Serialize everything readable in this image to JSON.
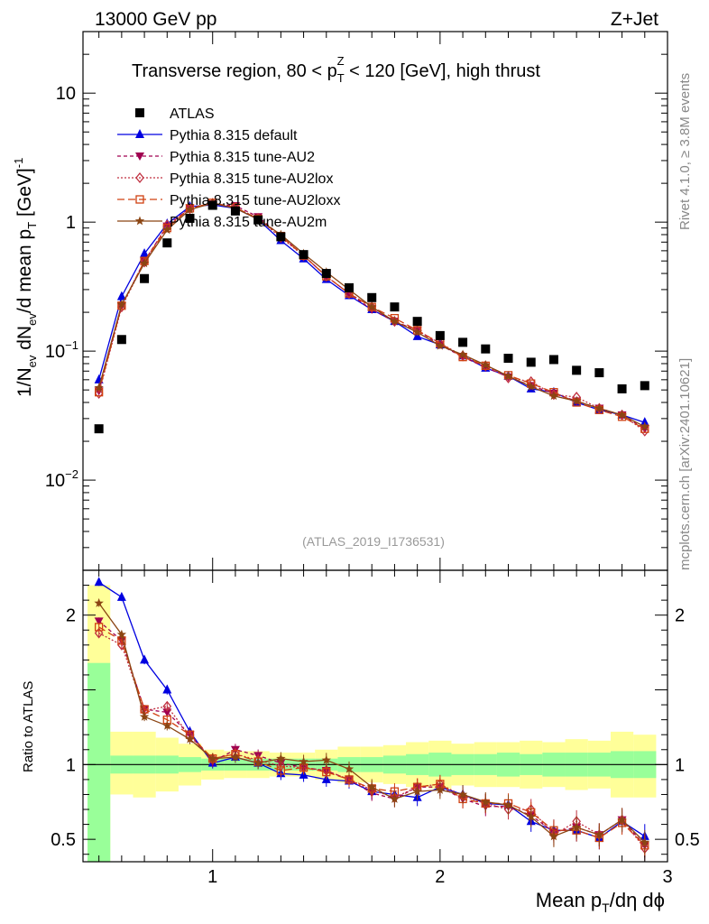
{
  "header": {
    "left": "13000 GeV pp",
    "right": "Z+Jet"
  },
  "side": {
    "rivet": "Rivet 4.1.0, ≥ 3.8M events",
    "mcplots": "mcplots.cern.ch [arXiv:2401.10621]"
  },
  "chart_data": {
    "type": "line",
    "title": "Transverse region, 80 < p_T^Z < 120 [GeV], high thrust",
    "title_main": "Transverse region, 80 < p",
    "title_sup": "Z",
    "title_sub": "T",
    "title_rest": " < 120 [GeV], high thrust",
    "analysis_tag": "(ATLAS_2019_I1736531)",
    "ylabel_main": "1/N",
    "ylabel_sub1": "ev",
    "ylabel_mid": " dN",
    "ylabel_sub2": "ev",
    "ylabel_end": "/d mean p",
    "ylabel_sub3": "T",
    "ylabel_unit": " [GeV]",
    "ylabel_sup": "-1",
    "ratio_ylabel": "Ratio to ATLAS",
    "xlabel_main": "Mean p",
    "xlabel_sub": "T",
    "xlabel_rest": "/dη dϕ",
    "xlim": [
      0.43,
      3.0
    ],
    "ylim": [
      0.002,
      30
    ],
    "ratio_ylim": [
      0.35,
      2.3
    ],
    "yscale": "log",
    "x_ticks": [
      "1",
      "2",
      "3"
    ],
    "y_tick_labels": [
      {
        "mant": "10",
        "exp": "−2"
      },
      {
        "mant": "10",
        "exp": "−1"
      },
      {
        "mant": "1",
        "exp": ""
      },
      {
        "mant": "10",
        "exp": ""
      }
    ],
    "ratio_ticks": [
      "0.5",
      "1",
      "2"
    ],
    "bin_edges": [
      0.45,
      0.55,
      0.65,
      0.75,
      0.85,
      0.95,
      1.05,
      1.15,
      1.25,
      1.35,
      1.45,
      1.55,
      1.65,
      1.75,
      1.85,
      1.95,
      2.05,
      2.15,
      2.25,
      2.35,
      2.45,
      2.55,
      2.65,
      2.75,
      2.85,
      2.95
    ],
    "x": [
      0.5,
      0.6,
      0.7,
      0.8,
      0.9,
      1.0,
      1.1,
      1.2,
      1.3,
      1.4,
      1.5,
      1.6,
      1.7,
      1.8,
      1.9,
      2.0,
      2.1,
      2.2,
      2.3,
      2.4,
      2.5,
      2.6,
      2.7,
      2.8,
      2.9
    ],
    "data": {
      "name": "ATLAS",
      "values": [
        0.025,
        0.123,
        0.365,
        0.69,
        1.07,
        1.35,
        1.22,
        1.04,
        0.77,
        0.56,
        0.4,
        0.31,
        0.26,
        0.22,
        0.17,
        0.132,
        0.117,
        0.104,
        0.088,
        0.082,
        0.086,
        0.071,
        0.068,
        0.051,
        0.054
      ],
      "band_inner": [
        [
          0.35,
          1.68
        ],
        [
          0.94,
          1.06
        ],
        [
          0.94,
          1.06
        ],
        [
          0.94,
          1.06
        ],
        [
          0.95,
          1.05
        ],
        [
          0.96,
          1.04
        ],
        [
          0.96,
          1.04
        ],
        [
          0.96,
          1.04
        ],
        [
          0.96,
          1.04
        ],
        [
          0.96,
          1.04
        ],
        [
          0.96,
          1.04
        ],
        [
          0.95,
          1.05
        ],
        [
          0.95,
          1.05
        ],
        [
          0.94,
          1.06
        ],
        [
          0.93,
          1.07
        ],
        [
          0.92,
          1.08
        ],
        [
          0.93,
          1.07
        ],
        [
          0.93,
          1.07
        ],
        [
          0.92,
          1.08
        ],
        [
          0.93,
          1.07
        ],
        [
          0.92,
          1.08
        ],
        [
          0.92,
          1.08
        ],
        [
          0.92,
          1.08
        ],
        [
          0.91,
          1.09
        ],
        [
          0.91,
          1.09
        ]
      ],
      "band_outer": [
        [
          0.35,
          2.2
        ],
        [
          0.8,
          1.22
        ],
        [
          0.78,
          1.22
        ],
        [
          0.82,
          1.18
        ],
        [
          0.86,
          1.14
        ],
        [
          0.9,
          1.1
        ],
        [
          0.91,
          1.09
        ],
        [
          0.91,
          1.09
        ],
        [
          0.92,
          1.08
        ],
        [
          0.92,
          1.08
        ],
        [
          0.9,
          1.1
        ],
        [
          0.88,
          1.12
        ],
        [
          0.88,
          1.12
        ],
        [
          0.87,
          1.13
        ],
        [
          0.85,
          1.15
        ],
        [
          0.84,
          1.16
        ],
        [
          0.86,
          1.14
        ],
        [
          0.85,
          1.15
        ],
        [
          0.85,
          1.15
        ],
        [
          0.84,
          1.16
        ],
        [
          0.85,
          1.15
        ],
        [
          0.83,
          1.17
        ],
        [
          0.84,
          1.16
        ],
        [
          0.78,
          1.22
        ],
        [
          0.78,
          1.2
        ]
      ]
    },
    "series": [
      {
        "name": "Pythia 8.315 default",
        "color": "#0000e0",
        "dash": "",
        "marker": "triangle-up",
        "values": [
          0.06,
          0.265,
          0.57,
          0.97,
          1.32,
          1.36,
          1.28,
          1.05,
          0.72,
          0.52,
          0.36,
          0.27,
          0.21,
          0.17,
          0.13,
          0.112,
          0.092,
          0.074,
          0.064,
          0.051,
          0.048,
          0.04,
          0.035,
          0.032,
          0.028
        ],
        "ratio": [
          2.22,
          2.12,
          1.7,
          1.5,
          1.22,
          1.01,
          1.05,
          1.01,
          0.94,
          0.93,
          0.9,
          0.89,
          0.82,
          0.8,
          0.78,
          0.85,
          0.8,
          0.74,
          0.73,
          0.62,
          0.56,
          0.56,
          0.51,
          0.62,
          0.52
        ]
      },
      {
        "name": "Pythia 8.315 tune-AU2",
        "color": "#a00050",
        "dash": "4,3",
        "marker": "triangle-down",
        "values": [
          0.049,
          0.225,
          0.5,
          0.93,
          1.29,
          1.38,
          1.34,
          1.1,
          0.78,
          0.55,
          0.38,
          0.28,
          0.21,
          0.17,
          0.145,
          0.112,
          0.09,
          0.075,
          0.063,
          0.054,
          0.047,
          0.041,
          0.036,
          0.032,
          0.025
        ],
        "ratio": [
          1.96,
          1.83,
          1.37,
          1.35,
          1.2,
          1.02,
          1.1,
          1.06,
          1.01,
          0.98,
          0.96,
          0.9,
          0.81,
          0.77,
          0.85,
          0.85,
          0.77,
          0.72,
          0.72,
          0.66,
          0.55,
          0.58,
          0.53,
          0.63,
          0.46
        ]
      },
      {
        "name": "Pythia 8.315 tune-AU2lox",
        "color": "#c03040",
        "dash": "2,2",
        "marker": "diamond-open",
        "values": [
          0.047,
          0.22,
          0.49,
          0.95,
          1.27,
          1.4,
          1.3,
          1.07,
          0.76,
          0.55,
          0.38,
          0.28,
          0.22,
          0.17,
          0.145,
          0.115,
          0.092,
          0.077,
          0.062,
          0.058,
          0.046,
          0.044,
          0.036,
          0.032,
          0.024
        ],
        "ratio": [
          1.88,
          1.8,
          1.36,
          1.39,
          1.19,
          1.04,
          1.07,
          1.03,
          0.99,
          0.98,
          0.96,
          0.9,
          0.83,
          0.78,
          0.85,
          0.87,
          0.79,
          0.74,
          0.7,
          0.7,
          0.53,
          0.62,
          0.53,
          0.63,
          0.44
        ]
      },
      {
        "name": "Pythia 8.315 tune-AU2loxx",
        "color": "#d04010",
        "dash": "8,4",
        "marker": "square-open",
        "values": [
          0.048,
          0.225,
          0.5,
          0.9,
          1.28,
          1.41,
          1.3,
          1.06,
          0.78,
          0.55,
          0.38,
          0.28,
          0.22,
          0.18,
          0.145,
          0.115,
          0.09,
          0.077,
          0.065,
          0.056,
          0.048,
          0.04,
          0.035,
          0.031,
          0.025
        ],
        "ratio": [
          1.92,
          1.83,
          1.37,
          1.3,
          1.2,
          1.04,
          1.07,
          1.02,
          0.96,
          0.98,
          0.95,
          0.9,
          0.84,
          0.82,
          0.85,
          0.87,
          0.77,
          0.74,
          0.74,
          0.68,
          0.56,
          0.56,
          0.51,
          0.61,
          0.46
        ]
      },
      {
        "name": "Pythia 8.315 tune-AU2m",
        "color": "#8b4513",
        "dash": "",
        "marker": "star",
        "values": [
          0.052,
          0.23,
          0.48,
          0.87,
          1.25,
          1.4,
          1.28,
          1.05,
          0.8,
          0.57,
          0.41,
          0.3,
          0.22,
          0.17,
          0.14,
          0.11,
          0.094,
          0.078,
          0.064,
          0.053,
          0.045,
          0.041,
          0.036,
          0.032,
          0.026
        ],
        "ratio": [
          2.08,
          1.87,
          1.32,
          1.26,
          1.17,
          1.04,
          1.05,
          1.01,
          1.04,
          1.02,
          1.03,
          0.97,
          0.85,
          0.77,
          0.82,
          0.83,
          0.8,
          0.75,
          0.73,
          0.65,
          0.52,
          0.58,
          0.53,
          0.63,
          0.48
        ]
      }
    ]
  }
}
